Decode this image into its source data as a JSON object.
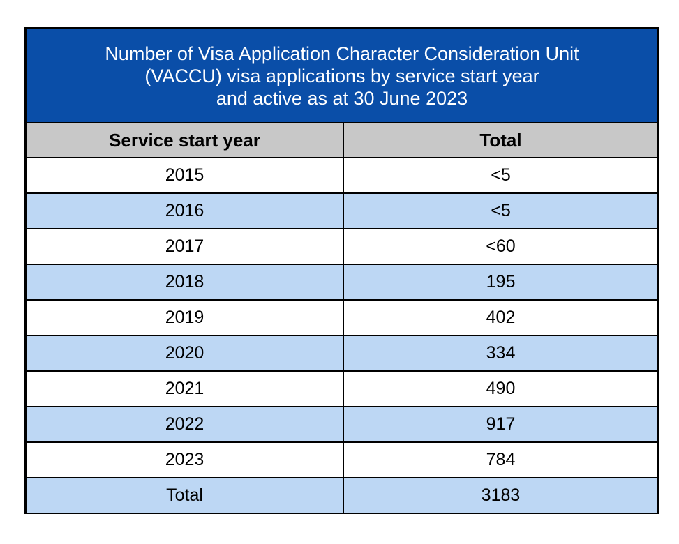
{
  "table": {
    "title_lines": [
      "Number of Visa Application Character Consideration Unit",
      "(VACCU) visa applications by service start year",
      "and active as at 30 June 2023"
    ],
    "headers": [
      "Service start year",
      "Total"
    ],
    "rows": [
      {
        "year": "2015",
        "total": "<5"
      },
      {
        "year": "2016",
        "total": "<5"
      },
      {
        "year": "2017",
        "total": "<60"
      },
      {
        "year": "2018",
        "total": "195"
      },
      {
        "year": "2019",
        "total": "402"
      },
      {
        "year": "2020",
        "total": "334"
      },
      {
        "year": "2021",
        "total": "490"
      },
      {
        "year": "2022",
        "total": "917"
      },
      {
        "year": "2023",
        "total": "784"
      },
      {
        "year": "Total",
        "total": "3183"
      }
    ]
  },
  "colors": {
    "title_background": "#0a4ea8",
    "header_background": "#c8c8c8",
    "row_alt_background": "#bdd7f4",
    "row_background": "#ffffff",
    "border": "#000000"
  }
}
